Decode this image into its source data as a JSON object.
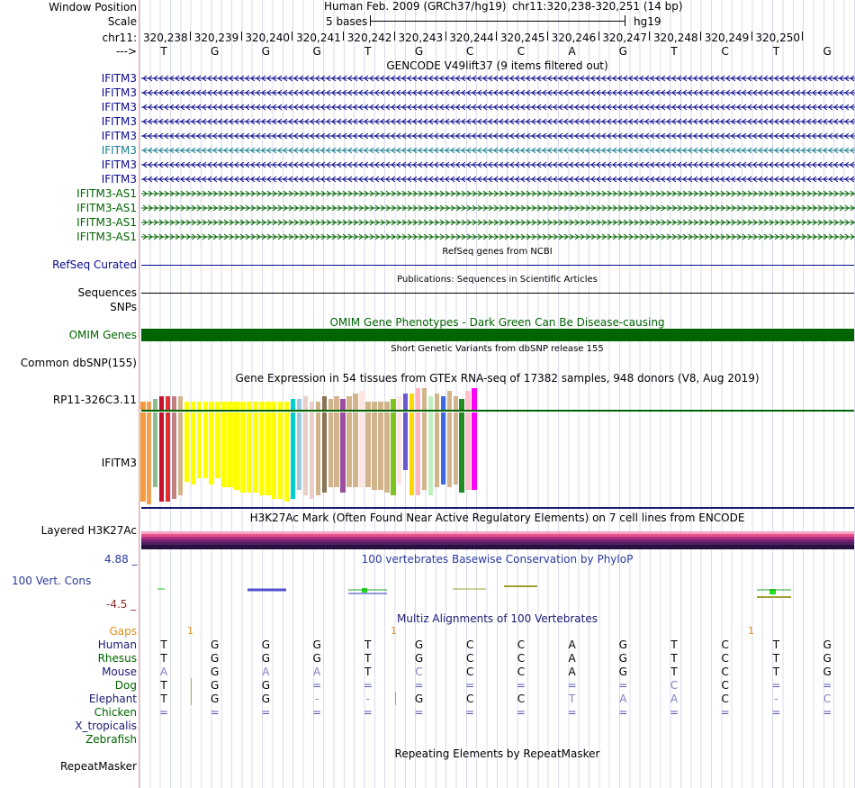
{
  "header": {
    "window_position_label": "Window Position",
    "scale_label": "Scale",
    "chr_label": "chr11:",
    "arrow_label": "--->",
    "assembly": "Human Feb. 2009 (GRCh37/hg19)",
    "position": "chr11:320,238-320,251 (14 bp)",
    "scale_text": "5 bases",
    "db": "hg19",
    "coords": [
      "320,238",
      "320,239",
      "320,240",
      "320,241",
      "320,242",
      "320,243",
      "320,244",
      "320,245",
      "320,246",
      "320,247",
      "320,248",
      "320,249",
      "320,250"
    ],
    "bases": [
      "T",
      "G",
      "G",
      "G",
      "T",
      "G",
      "C",
      "C",
      "A",
      "G",
      "T",
      "C",
      "T",
      "G"
    ]
  },
  "gencode": {
    "title": "GENCODE V49lift37 (9 items filtered out)",
    "genes": [
      {
        "name": "IFITM3",
        "strand": "minus",
        "color": "#0a0a8c"
      },
      {
        "name": "IFITM3",
        "strand": "minus",
        "color": "#0a0a8c"
      },
      {
        "name": "IFITM3",
        "strand": "minus",
        "color": "#0a0a8c"
      },
      {
        "name": "IFITM3",
        "strand": "minus",
        "color": "#0a0a8c"
      },
      {
        "name": "IFITM3",
        "strand": "minus",
        "color": "#0a0a8c"
      },
      {
        "name": "IFITM3",
        "strand": "minus",
        "color": "#1a8090"
      },
      {
        "name": "IFITM3",
        "strand": "minus",
        "color": "#0a0a8c"
      },
      {
        "name": "IFITM3",
        "strand": "minus",
        "color": "#0a0a8c"
      },
      {
        "name": "IFITM3-AS1",
        "strand": "plus",
        "color": "#006400"
      },
      {
        "name": "IFITM3-AS1",
        "strand": "plus",
        "color": "#006400"
      },
      {
        "name": "IFITM3-AS1",
        "strand": "plus",
        "color": "#006400"
      },
      {
        "name": "IFITM3-AS1",
        "strand": "plus",
        "color": "#006400"
      }
    ]
  },
  "refseq": {
    "title": "RefSeq genes from NCBI",
    "label": "RefSeq Curated"
  },
  "pubs": {
    "title": "Publications: Sequences in Scientific Articles",
    "label": "Sequences"
  },
  "snps": {
    "label": "SNPs"
  },
  "omim": {
    "title": "OMIM Gene Phenotypes - Dark Green Can Be Disease-causing",
    "label": "OMIM Genes"
  },
  "dbsnp": {
    "title": "Short Genetic Variants from dbSNP release 155",
    "label": "Common dbSNP(155)"
  },
  "gtex": {
    "title": "Gene Expression in 54 tissues from GTEx RNA-seq of 17382 samples, 948 donors (V8, Aug 2019)",
    "genes": [
      "RP11-326C3.11",
      "IFITM3"
    ],
    "colors": [
      "#f79a3c",
      "#f0a050",
      "#8fbc8f",
      "#c8102e",
      "#e03030",
      "#c08080",
      "#d2b48c",
      "#ffff00",
      "#ffff00",
      "#ffff00",
      "#ffff00",
      "#ffff00",
      "#ffff00",
      "#ffff00",
      "#ffff00",
      "#ffff00",
      "#ffff00",
      "#ffff00",
      "#ffff00",
      "#ffff00",
      "#ffff00",
      "#ffff00",
      "#ffff00",
      "#ffff00",
      "#00ced1",
      "#a0c8dc",
      "#e8d0c8",
      "#e8d0c8",
      "#d2b48c",
      "#8b7355",
      "#d2b48c",
      "#d2b48c",
      "#9b4ea0",
      "#d2b48c",
      "#d2b48c",
      "#ffe4e1",
      "#d2b48c",
      "#d2b48c",
      "#d2b48c",
      "#d2b48c",
      "#7fc41e",
      "#ffe4e1",
      "#6a5acd",
      "#ffd700",
      "#ffb6c1",
      "#d2b48c",
      "#c0eec0",
      "#d2b48c",
      "#4169e1",
      "#d2b48c",
      "#d2b48c",
      "#228b22",
      "#ffc0cb",
      "#ff00ff"
    ],
    "values_rp11": [
      3,
      3,
      4,
      5,
      5,
      5,
      5,
      3,
      3,
      3,
      3,
      3,
      3,
      3,
      3,
      3,
      3,
      3,
      3,
      3,
      3,
      3,
      3,
      3,
      4,
      4,
      5,
      3,
      3,
      5,
      4,
      5,
      4,
      5,
      6,
      7,
      3,
      3,
      3,
      3,
      4,
      5,
      6,
      6,
      8,
      8,
      5,
      6,
      5,
      7,
      5,
      4,
      7,
      8
    ],
    "values_ifitm3": [
      31,
      32,
      26,
      31,
      31,
      30,
      29,
      24,
      25,
      23,
      23,
      25,
      23,
      26,
      26,
      27,
      28,
      28,
      28,
      29,
      29,
      30,
      30,
      31,
      30,
      27,
      29,
      30,
      29,
      28,
      26,
      26,
      28,
      26,
      26,
      26,
      26,
      27,
      27,
      28,
      29,
      25,
      20,
      29,
      29,
      27,
      29,
      26,
      25,
      26,
      25,
      28,
      27,
      27
    ]
  },
  "h3k27ac": {
    "title": "H3K27Ac Mark (Often Found Near Active Regulatory Elements) on 7 cell lines from ENCODE",
    "label": "Layered H3K27Ac"
  },
  "phylop": {
    "title": "100 vertebrates Basewise Conservation by PhyloP",
    "label": "100 Vert. Cons",
    "max": "4.88 _",
    "min": "-4.5 _"
  },
  "multiz": {
    "title": "Multiz Alignments of 100 Vertebrates",
    "gaps_label": "Gaps",
    "gap_marks": [
      "1",
      "1",
      "1"
    ],
    "species": [
      {
        "name": "Human",
        "seq": [
          "T",
          "G",
          "G",
          "G",
          "T",
          "G",
          "C",
          "C",
          "A",
          "G",
          "T",
          "C",
          "T",
          "G"
        ]
      },
      {
        "name": "Rhesus",
        "seq": [
          "T",
          "G",
          "G",
          "G",
          "T",
          "G",
          "C",
          "C",
          "A",
          "G",
          "T",
          "C",
          "T",
          "G"
        ]
      },
      {
        "name": "Mouse",
        "seq": [
          "A",
          "G",
          "A",
          "A",
          "T",
          "C",
          "C",
          "C",
          "A",
          "G",
          "T",
          "C",
          "T",
          "G"
        ]
      },
      {
        "name": "Dog",
        "seq": [
          "T",
          "G",
          "G",
          "=",
          "=",
          "=",
          "=",
          "=",
          "=",
          "=",
          "C",
          "C",
          "=",
          "="
        ]
      },
      {
        "name": "Elephant",
        "seq": [
          "T",
          "G",
          "G",
          "-",
          "-",
          "G",
          "C",
          "C",
          "T",
          "A",
          "A",
          "C",
          "-",
          "C"
        ]
      },
      {
        "name": "Chicken",
        "seq": [
          "=",
          "=",
          "=",
          "=",
          "=",
          "=",
          "=",
          "=",
          "=",
          "=",
          "=",
          "=",
          "=",
          "="
        ]
      },
      {
        "name": "X_tropicalis",
        "seq": []
      },
      {
        "name": "Zebrafish",
        "seq": []
      }
    ]
  },
  "repeatmasker": {
    "title": "Repeating Elements by RepeatMasker",
    "label": "RepeatMasker"
  }
}
